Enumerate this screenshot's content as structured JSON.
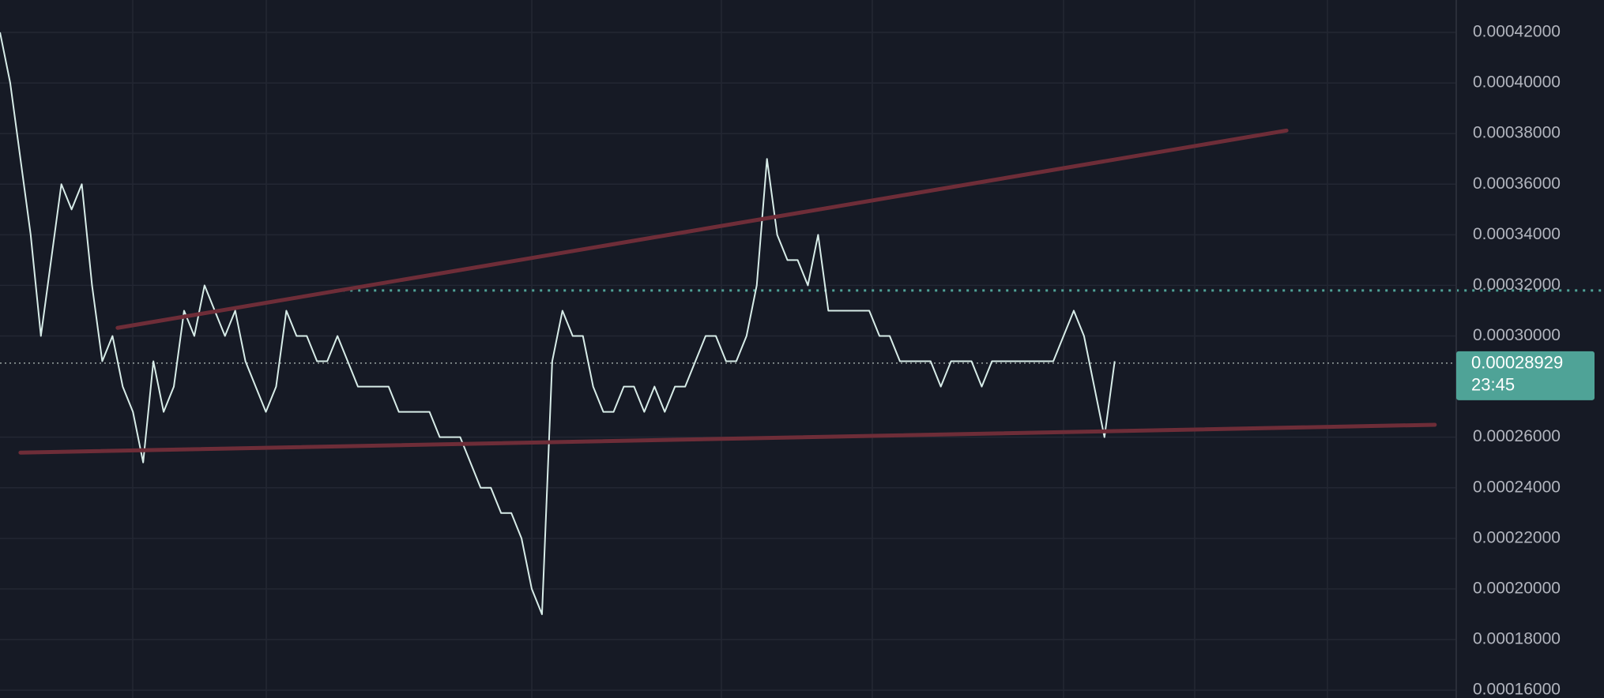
{
  "chart_data": {
    "type": "line",
    "series": [
      {
        "color": "#d7ece8",
        "values": [
          0.00042,
          0.0004,
          0.00037,
          0.00034,
          0.0003,
          0.00033,
          0.00036,
          0.00035,
          0.00036,
          0.00032,
          0.00029,
          0.0003,
          0.00028,
          0.00027,
          0.00025,
          0.00029,
          0.00027,
          0.00028,
          0.00031,
          0.0003,
          0.00032,
          0.00031,
          0.0003,
          0.00031,
          0.00029,
          0.00028,
          0.00027,
          0.00028,
          0.00031,
          0.0003,
          0.0003,
          0.00029,
          0.00029,
          0.0003,
          0.00029,
          0.00028,
          0.00028,
          0.00028,
          0.00028,
          0.00027,
          0.00027,
          0.00027,
          0.00027,
          0.00026,
          0.00026,
          0.00026,
          0.00025,
          0.00024,
          0.00024,
          0.00023,
          0.00023,
          0.00022,
          0.0002,
          0.00019,
          0.00029,
          0.00031,
          0.0003,
          0.0003,
          0.00028,
          0.00027,
          0.00027,
          0.00028,
          0.00028,
          0.00027,
          0.00028,
          0.00027,
          0.00028,
          0.00028,
          0.00029,
          0.0003,
          0.0003,
          0.00029,
          0.00029,
          0.0003,
          0.00032,
          0.00037,
          0.00034,
          0.00033,
          0.00033,
          0.00032,
          0.00034,
          0.00031,
          0.00031,
          0.00031,
          0.00031,
          0.00031,
          0.0003,
          0.0003,
          0.00029,
          0.00029,
          0.00029,
          0.00029,
          0.00028,
          0.00029,
          0.00029,
          0.00029,
          0.00028,
          0.00029,
          0.00029,
          0.00029,
          0.00029,
          0.00029,
          0.00029,
          0.00029,
          0.0003,
          0.00031,
          0.0003,
          0.00028,
          0.00026,
          0.00029
        ]
      }
    ],
    "xlim": [
      0,
      142.4
    ],
    "ylim": [
      0.0001569,
      0.0004328
    ],
    "yticks": [
      {
        "value": 0.00042,
        "label": "0.00042000"
      },
      {
        "value": 0.0004,
        "label": "0.00040000"
      },
      {
        "value": 0.00038,
        "label": "0.00038000"
      },
      {
        "value": 0.00036,
        "label": "0.00036000"
      },
      {
        "value": 0.00034,
        "label": "0.00034000"
      },
      {
        "value": 0.00032,
        "label": "0.00032000"
      },
      {
        "value": 0.0003,
        "label": "0.00030000"
      },
      {
        "value": 0.00026,
        "label": "0.00026000"
      },
      {
        "value": 0.00024,
        "label": "0.00024000"
      },
      {
        "value": 0.00022,
        "label": "0.00022000"
      },
      {
        "value": 0.0002,
        "label": "0.00020000"
      },
      {
        "value": 0.00018,
        "label": "0.00018000"
      },
      {
        "value": 0.00016,
        "label": "0.00016000"
      }
    ],
    "grid": true,
    "trendlines": [
      {
        "start": [
          11.5,
          0.0003032
        ],
        "end": [
          125.8,
          0.0003812
        ],
        "color": "#6e2d38"
      },
      {
        "start": [
          2.0,
          0.0002539
        ],
        "end": [
          140.3,
          0.0002649
        ],
        "color": "#6e2d38"
      }
    ],
    "resistance": {
      "value": 0.000318,
      "start": 32.7,
      "color": "#4fa397"
    },
    "last_price": 0.00028929,
    "countdown": "23:45",
    "price_color": "#4fa397"
  }
}
